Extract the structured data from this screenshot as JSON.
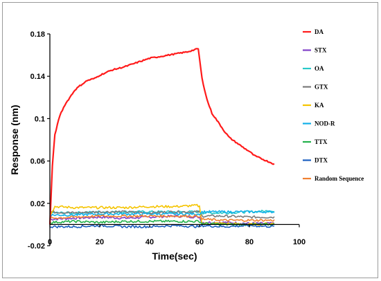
{
  "chart_data": {
    "type": "line",
    "xlabel": "Time(sec)",
    "ylabel": "Response (nm)",
    "xlim": [
      0,
      100
    ],
    "ylim": [
      -0.02,
      0.18
    ],
    "xticks": [
      "0",
      "20",
      "40",
      "60",
      "80",
      "100"
    ],
    "yticks": [
      "-0.02",
      "0.02",
      "0.06",
      "0.1",
      "0.14",
      "0.18"
    ],
    "grid": false,
    "legend_position": "right",
    "series": [
      {
        "name": "DA",
        "color": "#ff1a1a",
        "x": [
          0,
          1,
          2,
          4,
          6,
          8,
          10,
          12,
          15,
          18,
          20,
          25,
          30,
          35,
          40,
          45,
          50,
          55,
          58,
          59.5,
          61,
          63,
          65,
          68,
          70,
          72,
          75,
          78,
          80,
          82,
          85,
          88,
          90
        ],
        "y": [
          0,
          0.055,
          0.085,
          0.103,
          0.113,
          0.12,
          0.127,
          0.131,
          0.136,
          0.138,
          0.141,
          0.146,
          0.149,
          0.153,
          0.157,
          0.159,
          0.161,
          0.163,
          0.165,
          0.166,
          0.138,
          0.118,
          0.105,
          0.095,
          0.088,
          0.082,
          0.077,
          0.072,
          0.069,
          0.065,
          0.062,
          0.059,
          0.057
        ]
      },
      {
        "name": "STX",
        "color": "#8040c8",
        "x": [
          0,
          10,
          20,
          30,
          40,
          50,
          60,
          61,
          70,
          80,
          90
        ],
        "y": [
          0.005,
          0.006,
          0.007,
          0.006,
          0.007,
          0.008,
          0.007,
          0.002,
          0.002,
          0.001,
          0.001
        ]
      },
      {
        "name": "OA",
        "color": "#28c8c8",
        "x": [
          0,
          10,
          20,
          30,
          40,
          50,
          60,
          61,
          70,
          80,
          90
        ],
        "y": [
          0.011,
          0.011,
          0.012,
          0.012,
          0.012,
          0.012,
          0.012,
          0.011,
          0.011,
          0.012,
          0.013
        ]
      },
      {
        "name": "GTX",
        "color": "#7a7a7a",
        "x": [
          0,
          10,
          20,
          30,
          40,
          50,
          60,
          61,
          70,
          80,
          90
        ],
        "y": [
          0.012,
          0.011,
          0.012,
          0.012,
          0.011,
          0.012,
          0.012,
          0.008,
          0.008,
          0.007,
          0.007
        ]
      },
      {
        "name": "KA",
        "color": "#f5c400",
        "x": [
          0,
          2,
          10,
          20,
          30,
          40,
          50,
          59,
          60,
          61,
          70,
          80,
          90
        ],
        "y": [
          0.009,
          0.017,
          0.016,
          0.016,
          0.016,
          0.017,
          0.017,
          0.018,
          0.017,
          0.001,
          0.001,
          0.0,
          0.001
        ]
      },
      {
        "name": "NOD-R",
        "color": "#10b0e8",
        "x": [
          0,
          10,
          20,
          30,
          40,
          50,
          60,
          61,
          70,
          80,
          90
        ],
        "y": [
          0.009,
          0.009,
          0.01,
          0.01,
          0.01,
          0.01,
          0.01,
          0.012,
          0.012,
          0.012,
          0.012
        ]
      },
      {
        "name": "TTX",
        "color": "#22b04a",
        "x": [
          0,
          10,
          20,
          30,
          40,
          50,
          60,
          61,
          70,
          80,
          90
        ],
        "y": [
          0.002,
          0.003,
          0.002,
          0.003,
          0.003,
          0.003,
          0.003,
          0.001,
          0.0,
          0.0,
          0.0
        ]
      },
      {
        "name": "DTX",
        "color": "#1a5fc0",
        "x": [
          0,
          10,
          20,
          30,
          40,
          50,
          60,
          61,
          70,
          80,
          90
        ],
        "y": [
          -0.002,
          -0.002,
          -0.001,
          -0.002,
          -0.002,
          -0.001,
          -0.002,
          -0.001,
          -0.002,
          -0.001,
          -0.002
        ]
      },
      {
        "name": "Random Sequence",
        "color": "#f08030",
        "x": [
          0,
          10,
          20,
          30,
          40,
          50,
          60,
          61,
          70,
          80,
          90
        ],
        "y": [
          0.006,
          0.007,
          0.008,
          0.008,
          0.008,
          0.008,
          0.008,
          0.005,
          0.004,
          0.004,
          0.004
        ]
      }
    ]
  }
}
